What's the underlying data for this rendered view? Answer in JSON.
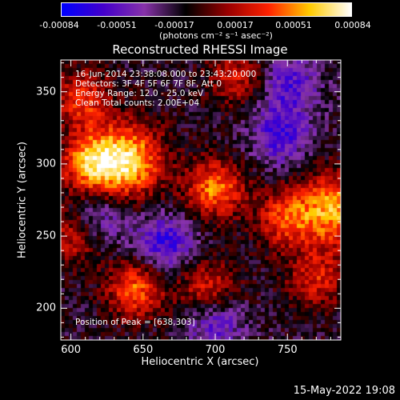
{
  "colorbar": {
    "ticks": [
      "-0.00084",
      "-0.00051",
      "-0.00017",
      "0.00017",
      "0.00051",
      "0.00084"
    ],
    "unit_label": "(photons cm⁻² s⁻¹ asec⁻²)",
    "colors": [
      "#0000ff",
      "#4400cc",
      "#8833aa",
      "#000000",
      "#990000",
      "#ff2200",
      "#ffcc00",
      "#ffffff"
    ]
  },
  "chart_data": {
    "type": "heatmap",
    "title": "Reconstructed RHESSI Image",
    "xlabel": "Heliocentric X (arcsec)",
    "ylabel": "Heliocentric Y (arcsec)",
    "xlim": [
      593,
      787
    ],
    "ylim": [
      178,
      372
    ],
    "x_ticks": [
      600,
      650,
      700,
      750
    ],
    "y_ticks": [
      200,
      250,
      300,
      350
    ],
    "peak": [
      638,
      303
    ],
    "hot_regions": [
      {
        "x": 638,
        "y": 302,
        "intensity": 1.0
      },
      {
        "x": 700,
        "y": 283,
        "intensity": 0.75
      },
      {
        "x": 783,
        "y": 268,
        "intensity": 0.85
      },
      {
        "x": 748,
        "y": 262,
        "intensity": 0.6
      },
      {
        "x": 612,
        "y": 300,
        "intensity": 0.7
      },
      {
        "x": 608,
        "y": 345,
        "intensity": 0.6
      },
      {
        "x": 645,
        "y": 213,
        "intensity": 0.7
      },
      {
        "x": 695,
        "y": 213,
        "intensity": 0.55
      },
      {
        "x": 770,
        "y": 220,
        "intensity": 0.5
      },
      {
        "x": 715,
        "y": 360,
        "intensity": 0.45
      },
      {
        "x": 603,
        "y": 250,
        "intensity": 0.5
      }
    ],
    "cold_regions": [
      {
        "x": 665,
        "y": 245,
        "intensity": -0.6
      },
      {
        "x": 745,
        "y": 320,
        "intensity": -0.55
      },
      {
        "x": 700,
        "y": 190,
        "intensity": -0.5
      },
      {
        "x": 620,
        "y": 262,
        "intensity": -0.45
      },
      {
        "x": 752,
        "y": 355,
        "intensity": -0.5
      }
    ]
  },
  "annotations": {
    "time_range": "16-Jun-2014 23:38:08.000 to 23:43:20.000",
    "detectors": "Detectors: 3F 4F 5F 6F 7F 8F, Att 0",
    "energy": "Energy Range: 12.0 - 25.0 keV",
    "clean": "Clean    Total counts: 2.00E+04",
    "peak": "Position of Peak = [638,303]"
  },
  "timestamp": "15-May-2022 19:08"
}
